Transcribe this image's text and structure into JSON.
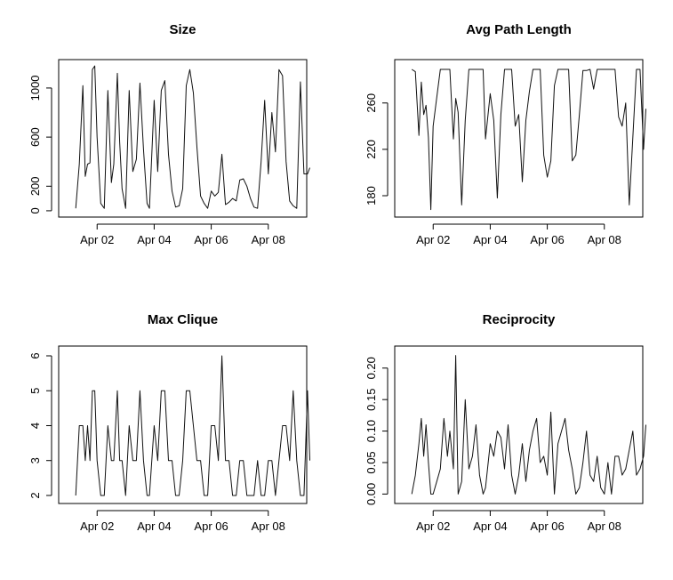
{
  "chart_data": [
    {
      "type": "line",
      "title": "Size",
      "xlabel": "",
      "ylabel": "",
      "x_ticks": [
        "Apr 02",
        "Apr 04",
        "Apr 06",
        "Apr 08"
      ],
      "x_tick_values": [
        "2024-04-02",
        "2024-04-04",
        "2024-04-06",
        "2024-04-08"
      ],
      "xlim": [
        "2024-04-01",
        "2024-04-09"
      ],
      "y_ticks": [
        0,
        200,
        600,
        1000
      ],
      "ylim": [
        0,
        1180
      ],
      "grid": false,
      "series": [
        {
          "x": [
            "2024-04-01T06:00",
            "2024-04-01T09:00",
            "2024-04-01T12:00",
            "2024-04-01T14:00",
            "2024-04-01T16:00",
            "2024-04-01T18:00",
            "2024-04-01T20:00",
            "2024-04-01T22:00",
            "2024-04-02T00:00",
            "2024-04-02T03:00",
            "2024-04-02T06:00",
            "2024-04-02T09:00",
            "2024-04-02T12:00",
            "2024-04-02T14:00",
            "2024-04-02T17:00",
            "2024-04-02T19:00",
            "2024-04-02T21:00",
            "2024-04-03T00:00",
            "2024-04-03T03:00",
            "2024-04-03T06:00",
            "2024-04-03T09:00",
            "2024-04-03T12:00",
            "2024-04-03T15:00",
            "2024-04-03T18:00",
            "2024-04-03T20:00",
            "2024-04-04T00:00",
            "2024-04-04T03:00",
            "2024-04-04T06:00",
            "2024-04-04T09:00",
            "2024-04-04T12:00",
            "2024-04-04T15:00",
            "2024-04-04T18:00",
            "2024-04-04T21:00",
            "2024-04-05T00:00",
            "2024-04-05T03:00",
            "2024-04-05T06:00",
            "2024-04-05T09:00",
            "2024-04-05T12:00",
            "2024-04-05T15:00",
            "2024-04-05T18:00",
            "2024-04-05T21:00",
            "2024-04-06T00:00",
            "2024-04-06T03:00",
            "2024-04-06T06:00",
            "2024-04-06T09:00",
            "2024-04-06T12:00",
            "2024-04-06T15:00",
            "2024-04-06T18:00",
            "2024-04-06T21:00",
            "2024-04-07T00:00",
            "2024-04-07T03:00",
            "2024-04-07T06:00",
            "2024-04-07T09:00",
            "2024-04-07T12:00",
            "2024-04-07T15:00",
            "2024-04-07T18:00",
            "2024-04-07T21:00",
            "2024-04-08T00:00",
            "2024-04-08T03:00",
            "2024-04-08T06:00",
            "2024-04-08T09:00",
            "2024-04-08T12:00",
            "2024-04-08T15:00",
            "2024-04-08T18:00",
            "2024-04-08T21:00",
            "2024-04-09T00:00",
            "2024-04-09T03:00",
            "2024-04-09T06:00",
            "2024-04-09T09:00",
            "2024-04-09T11:00"
          ],
          "values": [
            20,
            380,
            1020,
            280,
            380,
            390,
            1150,
            1180,
            600,
            60,
            20,
            980,
            230,
            380,
            1120,
            560,
            180,
            20,
            980,
            320,
            420,
            1040,
            500,
            60,
            20,
            900,
            320,
            980,
            1060,
            460,
            160,
            30,
            40,
            180,
            1020,
            1150,
            960,
            520,
            120,
            60,
            20,
            160,
            120,
            150,
            460,
            50,
            70,
            100,
            80,
            250,
            260,
            200,
            100,
            30,
            20,
            400,
            900,
            300,
            800,
            480,
            1150,
            1100,
            400,
            80,
            40,
            20,
            1050,
            300,
            300,
            350
          ]
        }
      ]
    },
    {
      "type": "line",
      "title": "Avg Path Length",
      "xlabel": "",
      "ylabel": "",
      "x_ticks": [
        "Apr 02",
        "Apr 04",
        "Apr 06",
        "Apr 08"
      ],
      "x_tick_values": [
        "2024-04-02",
        "2024-04-04",
        "2024-04-06",
        "2024-04-08"
      ],
      "xlim": [
        "2024-04-01",
        "2024-04-09"
      ],
      "y_ticks": [
        180,
        220,
        260
      ],
      "ylim": [
        167,
        292
      ],
      "grid": false,
      "series": [
        {
          "x": [
            "2024-04-01T06:00",
            "2024-04-01T09:00",
            "2024-04-01T12:00",
            "2024-04-01T14:00",
            "2024-04-01T16:00",
            "2024-04-01T18:00",
            "2024-04-01T20:00",
            "2024-04-01T22:00",
            "2024-04-02T00:00",
            "2024-04-02T03:00",
            "2024-04-02T06:00",
            "2024-04-02T09:00",
            "2024-04-02T12:00",
            "2024-04-02T14:00",
            "2024-04-02T17:00",
            "2024-04-02T19:00",
            "2024-04-02T21:00",
            "2024-04-03T00:00",
            "2024-04-03T03:00",
            "2024-04-03T06:00",
            "2024-04-03T09:00",
            "2024-04-03T12:00",
            "2024-04-03T15:00",
            "2024-04-03T18:00",
            "2024-04-03T20:00",
            "2024-04-04T00:00",
            "2024-04-04T03:00",
            "2024-04-04T06:00",
            "2024-04-04T09:00",
            "2024-04-04T12:00",
            "2024-04-04T15:00",
            "2024-04-04T18:00",
            "2024-04-04T21:00",
            "2024-04-05T00:00",
            "2024-04-05T03:00",
            "2024-04-05T06:00",
            "2024-04-05T09:00",
            "2024-04-05T12:00",
            "2024-04-05T15:00",
            "2024-04-05T18:00",
            "2024-04-05T21:00",
            "2024-04-06T00:00",
            "2024-04-06T03:00",
            "2024-04-06T06:00",
            "2024-04-06T09:00",
            "2024-04-06T12:00",
            "2024-04-06T15:00",
            "2024-04-06T18:00",
            "2024-04-06T21:00",
            "2024-04-07T00:00",
            "2024-04-07T03:00",
            "2024-04-07T06:00",
            "2024-04-07T09:00",
            "2024-04-07T12:00",
            "2024-04-07T15:00",
            "2024-04-07T18:00",
            "2024-04-07T21:00",
            "2024-04-08T00:00",
            "2024-04-08T03:00",
            "2024-04-08T06:00",
            "2024-04-08T09:00",
            "2024-04-08T12:00",
            "2024-04-08T15:00",
            "2024-04-08T18:00",
            "2024-04-08T21:00",
            "2024-04-09T00:00",
            "2024-04-09T03:00",
            "2024-04-09T06:00",
            "2024-04-09T09:00",
            "2024-04-09T11:00"
          ],
          "values": [
            289,
            287,
            232,
            278,
            250,
            258,
            230,
            168,
            240,
            265,
            289,
            289,
            289,
            289,
            229,
            264,
            252,
            172,
            245,
            289,
            289,
            289,
            289,
            289,
            229,
            268,
            245,
            178,
            250,
            289,
            289,
            289,
            240,
            250,
            192,
            245,
            270,
            289,
            289,
            289,
            215,
            196,
            210,
            275,
            289,
            289,
            289,
            289,
            210,
            215,
            250,
            288,
            288,
            289,
            272,
            289,
            289,
            289,
            289,
            289,
            289,
            248,
            240,
            260,
            172,
            230,
            289,
            289,
            220,
            255
          ]
        }
      ]
    },
    {
      "type": "line",
      "title": "Max Clique",
      "xlabel": "",
      "ylabel": "",
      "x_ticks": [
        "Apr 02",
        "Apr 04",
        "Apr 06",
        "Apr 08"
      ],
      "x_tick_values": [
        "2024-04-02",
        "2024-04-04",
        "2024-04-06",
        "2024-04-08"
      ],
      "xlim": [
        "2024-04-01",
        "2024-04-09"
      ],
      "y_ticks": [
        2,
        3,
        4,
        5,
        6
      ],
      "ylim": [
        1.95,
        6.1
      ],
      "grid": false,
      "series": [
        {
          "x": [
            "2024-04-01T06:00",
            "2024-04-01T09:00",
            "2024-04-01T12:00",
            "2024-04-01T14:00",
            "2024-04-01T16:00",
            "2024-04-01T18:00",
            "2024-04-01T20:00",
            "2024-04-01T22:00",
            "2024-04-02T00:00",
            "2024-04-02T03:00",
            "2024-04-02T06:00",
            "2024-04-02T09:00",
            "2024-04-02T12:00",
            "2024-04-02T14:00",
            "2024-04-02T17:00",
            "2024-04-02T19:00",
            "2024-04-02T21:00",
            "2024-04-03T00:00",
            "2024-04-03T03:00",
            "2024-04-03T06:00",
            "2024-04-03T09:00",
            "2024-04-03T12:00",
            "2024-04-03T15:00",
            "2024-04-03T18:00",
            "2024-04-03T20:00",
            "2024-04-04T00:00",
            "2024-04-04T03:00",
            "2024-04-04T06:00",
            "2024-04-04T09:00",
            "2024-04-04T12:00",
            "2024-04-04T15:00",
            "2024-04-04T18:00",
            "2024-04-04T21:00",
            "2024-04-05T00:00",
            "2024-04-05T03:00",
            "2024-04-05T06:00",
            "2024-04-05T09:00",
            "2024-04-05T12:00",
            "2024-04-05T15:00",
            "2024-04-05T18:00",
            "2024-04-05T21:00",
            "2024-04-06T00:00",
            "2024-04-06T03:00",
            "2024-04-06T06:00",
            "2024-04-06T09:00",
            "2024-04-06T12:00",
            "2024-04-06T15:00",
            "2024-04-06T18:00",
            "2024-04-06T21:00",
            "2024-04-07T00:00",
            "2024-04-07T03:00",
            "2024-04-07T06:00",
            "2024-04-07T09:00",
            "2024-04-07T12:00",
            "2024-04-07T15:00",
            "2024-04-07T18:00",
            "2024-04-07T21:00",
            "2024-04-08T00:00",
            "2024-04-08T03:00",
            "2024-04-08T06:00",
            "2024-04-08T09:00",
            "2024-04-08T12:00",
            "2024-04-08T15:00",
            "2024-04-08T18:00",
            "2024-04-08T21:00",
            "2024-04-09T00:00",
            "2024-04-09T03:00",
            "2024-04-09T06:00",
            "2024-04-09T09:00",
            "2024-04-09T11:00"
          ],
          "values": [
            2,
            4,
            4,
            3,
            4,
            3,
            5,
            5,
            3,
            2,
            2,
            4,
            3,
            3,
            5,
            3,
            3,
            2,
            4,
            3,
            3,
            5,
            3,
            2,
            2,
            4,
            3,
            5,
            5,
            3,
            3,
            2,
            2,
            3,
            5,
            5,
            4,
            3,
            3,
            2,
            2,
            4,
            4,
            3,
            6,
            3,
            3,
            2,
            2,
            3,
            3,
            2,
            2,
            2,
            3,
            2,
            2,
            3,
            3,
            2,
            3,
            4,
            4,
            3,
            5,
            3,
            2,
            2,
            5,
            3
          ]
        }
      ]
    },
    {
      "type": "line",
      "title": "Reciprocity",
      "xlabel": "",
      "ylabel": "",
      "x_ticks": [
        "Apr 02",
        "Apr 04",
        "Apr 06",
        "Apr 08"
      ],
      "x_tick_values": [
        "2024-04-02",
        "2024-04-04",
        "2024-04-06",
        "2024-04-08"
      ],
      "xlim": [
        "2024-04-01",
        "2024-04-09"
      ],
      "y_ticks": [
        0.0,
        0.05,
        0.1,
        0.15,
        0.2
      ],
      "y_tick_labels": [
        "0.00",
        "0.05",
        "0.10",
        "0.15",
        "0.20"
      ],
      "ylim": [
        -0.005,
        0.225
      ],
      "grid": false,
      "series": [
        {
          "x": [
            "2024-04-01T06:00",
            "2024-04-01T09:00",
            "2024-04-01T12:00",
            "2024-04-01T14:00",
            "2024-04-01T16:00",
            "2024-04-01T18:00",
            "2024-04-01T20:00",
            "2024-04-01T22:00",
            "2024-04-02T00:00",
            "2024-04-02T03:00",
            "2024-04-02T06:00",
            "2024-04-02T09:00",
            "2024-04-02T12:00",
            "2024-04-02T14:00",
            "2024-04-02T17:00",
            "2024-04-02T19:00",
            "2024-04-02T21:00",
            "2024-04-03T00:00",
            "2024-04-03T03:00",
            "2024-04-03T06:00",
            "2024-04-03T09:00",
            "2024-04-03T12:00",
            "2024-04-03T15:00",
            "2024-04-03T18:00",
            "2024-04-03T20:00",
            "2024-04-04T00:00",
            "2024-04-04T03:00",
            "2024-04-04T06:00",
            "2024-04-04T09:00",
            "2024-04-04T12:00",
            "2024-04-04T15:00",
            "2024-04-04T18:00",
            "2024-04-04T21:00",
            "2024-04-05T00:00",
            "2024-04-05T03:00",
            "2024-04-05T06:00",
            "2024-04-05T09:00",
            "2024-04-05T12:00",
            "2024-04-05T15:00",
            "2024-04-05T18:00",
            "2024-04-05T21:00",
            "2024-04-06T00:00",
            "2024-04-06T03:00",
            "2024-04-06T06:00",
            "2024-04-06T09:00",
            "2024-04-06T12:00",
            "2024-04-06T15:00",
            "2024-04-06T18:00",
            "2024-04-06T21:00",
            "2024-04-07T00:00",
            "2024-04-07T03:00",
            "2024-04-07T06:00",
            "2024-04-07T09:00",
            "2024-04-07T12:00",
            "2024-04-07T15:00",
            "2024-04-07T18:00",
            "2024-04-07T21:00",
            "2024-04-08T00:00",
            "2024-04-08T03:00",
            "2024-04-08T06:00",
            "2024-04-08T09:00",
            "2024-04-08T12:00",
            "2024-04-08T15:00",
            "2024-04-08T18:00",
            "2024-04-08T21:00",
            "2024-04-09T00:00",
            "2024-04-09T03:00",
            "2024-04-09T06:00",
            "2024-04-09T09:00",
            "2024-04-09T11:00"
          ],
          "values": [
            0,
            0.03,
            0.08,
            0.12,
            0.06,
            0.11,
            0.05,
            0,
            0,
            0.02,
            0.04,
            0.12,
            0.06,
            0.1,
            0.04,
            0.22,
            0,
            0.02,
            0.15,
            0.04,
            0.06,
            0.11,
            0.03,
            0,
            0.01,
            0.08,
            0.06,
            0.1,
            0.09,
            0.04,
            0.11,
            0.03,
            0,
            0.03,
            0.08,
            0.02,
            0.07,
            0.1,
            0.12,
            0.05,
            0.06,
            0.03,
            0.13,
            0,
            0.08,
            0.1,
            0.12,
            0.07,
            0.04,
            0,
            0.01,
            0.05,
            0.1,
            0.03,
            0.02,
            0.06,
            0.01,
            0,
            0.05,
            0,
            0.06,
            0.06,
            0.03,
            0.04,
            0.07,
            0.1,
            0.03,
            0.04,
            0.06,
            0.11
          ]
        }
      ]
    }
  ]
}
